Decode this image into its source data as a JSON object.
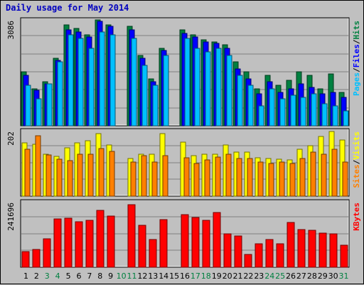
{
  "chart_data": {
    "type": "bar",
    "title": "Daily usage for May 2014",
    "categories": [
      "1",
      "2",
      "3",
      "4",
      "5",
      "6",
      "7",
      "8",
      "9",
      "10",
      "11",
      "12",
      "13",
      "14",
      "15",
      "16",
      "17",
      "18",
      "19",
      "20",
      "21",
      "22",
      "23",
      "24",
      "25",
      "26",
      "27",
      "28",
      "29",
      "30",
      "31"
    ],
    "weekend_days": [
      "3",
      "4",
      "10",
      "11",
      "17",
      "18",
      "24",
      "25",
      "31"
    ],
    "panels": [
      {
        "id": "hits-files-pages",
        "axis_max_label": "3086",
        "ylim": [
          0,
          3086
        ],
        "right_label_parts": [
          "Pages",
          "/",
          "Files",
          "/",
          "Hits"
        ],
        "series": [
          {
            "name": "Hits",
            "color": "#008040",
            "values": [
              1600,
              1100,
              1300,
              2000,
              3000,
              2900,
              2700,
              3150,
              3000,
              null,
              2950,
              2100,
              1400,
              2300,
              null,
              2850,
              2700,
              2550,
              2500,
              2400,
              1900,
              1600,
              1100,
              1500,
              1200,
              1350,
              1600,
              1500,
              1100,
              1550,
              1000
            ]
          },
          {
            "name": "Files",
            "color": "#0000ff",
            "values": [
              1500,
              1050,
              1250,
              1950,
              2850,
              2800,
              2650,
              3100,
              2950,
              null,
              2850,
              2000,
              1300,
              2250,
              null,
              2750,
              2650,
              2500,
              2450,
              2300,
              1700,
              1400,
              950,
              1300,
              1000,
              1100,
              1250,
              1150,
              950,
              1000,
              850
            ]
          },
          {
            "name": "Pages",
            "color": "#00c0ff",
            "values": [
              1200,
              800,
              1250,
              1900,
              2700,
              2600,
              2300,
              2800,
              2700,
              null,
              2600,
              1800,
              1200,
              2100,
              null,
              2600,
              2300,
              2200,
              2300,
              2100,
              1500,
              1200,
              600,
              1100,
              800,
              900,
              850,
              950,
              650,
              600,
              450
            ]
          }
        ]
      },
      {
        "id": "visits-sites",
        "axis_max_label": "202",
        "ylim": [
          0,
          202
        ],
        "right_label_parts": [
          "Sites",
          "/",
          "Visits"
        ],
        "series": [
          {
            "name": "Visits",
            "color": "#ffff00",
            "values": [
              170,
              165,
              133,
              128,
              155,
              170,
              177,
              200,
              164,
              null,
              120,
              135,
              135,
              200,
              null,
              172,
              130,
              135,
              135,
              163,
              140,
              140,
              123,
              120,
              117,
              115,
              150,
              162,
              190,
              207,
              180
            ]
          },
          {
            "name": "Sites",
            "color": "#ff8000",
            "values": [
              150,
              192,
              132,
              118,
              114,
              133,
              133,
              152,
              143,
              null,
              110,
              130,
              110,
              130,
              null,
              123,
              105,
              115,
              125,
              135,
              120,
              120,
              110,
              105,
              110,
              105,
              120,
              140,
              135,
              150,
              110
            ]
          }
        ]
      },
      {
        "id": "kbytes",
        "axis_max_label": "241696",
        "ylim": [
          0,
          241696
        ],
        "right_label_parts": [
          "KBytes"
        ],
        "series": [
          {
            "name": "KBytes",
            "color": "#ff0000",
            "values": [
              60000,
              68000,
              108000,
              185000,
              188000,
              175000,
              180000,
              217000,
              195000,
              null,
              240000,
              160000,
              107000,
              182000,
              null,
              200000,
              190000,
              178000,
              210000,
              128000,
              120000,
              50000,
              90000,
              106000,
              90000,
              170000,
              145000,
              140000,
              130000,
              128000,
              85000
            ]
          }
        ]
      }
    ]
  }
}
